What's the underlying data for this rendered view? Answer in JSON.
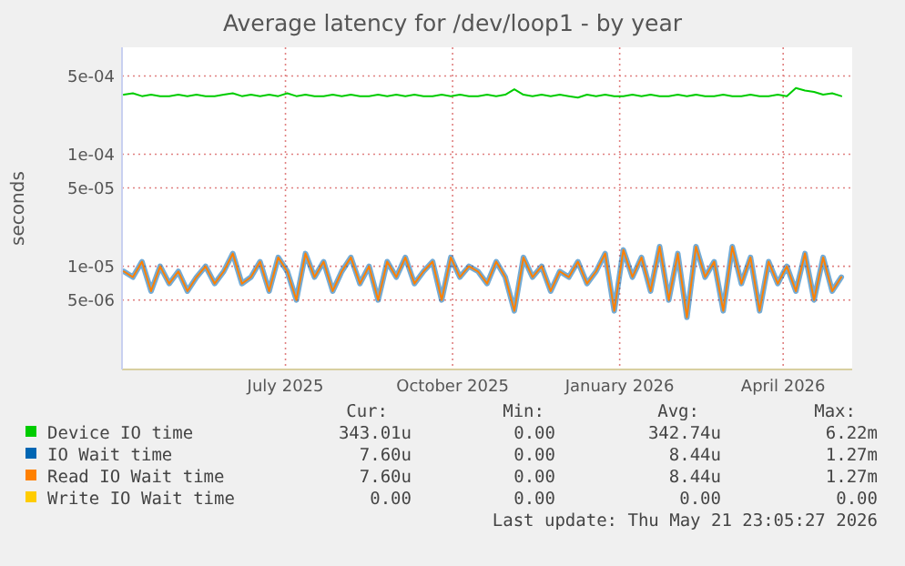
{
  "chart_data": {
    "type": "line",
    "title": "Average latency for /dev/loop1 - by year",
    "ylabel": "seconds",
    "log": "y",
    "grid": true,
    "legend": "bottom",
    "line_style": "solid",
    "x": [
      "2025-04-03",
      "2025-04-08",
      "2025-04-13",
      "2025-04-18",
      "2025-04-23",
      "2025-04-28",
      "2025-05-03",
      "2025-05-08",
      "2025-05-13",
      "2025-05-18",
      "2025-05-23",
      "2025-05-28",
      "2025-06-02",
      "2025-06-07",
      "2025-06-12",
      "2025-06-17",
      "2025-06-22",
      "2025-06-27",
      "2025-07-02",
      "2025-07-07",
      "2025-07-12",
      "2025-07-17",
      "2025-07-22",
      "2025-07-27",
      "2025-08-01",
      "2025-08-06",
      "2025-08-11",
      "2025-08-16",
      "2025-08-21",
      "2025-08-26",
      "2025-08-31",
      "2025-09-05",
      "2025-09-10",
      "2025-09-15",
      "2025-09-20",
      "2025-09-25",
      "2025-09-30",
      "2025-10-05",
      "2025-10-10",
      "2025-10-15",
      "2025-10-20",
      "2025-10-25",
      "2025-10-30",
      "2025-11-04",
      "2025-11-09",
      "2025-11-14",
      "2025-11-19",
      "2025-11-24",
      "2025-11-29",
      "2025-12-04",
      "2025-12-09",
      "2025-12-14",
      "2025-12-19",
      "2025-12-24",
      "2025-12-29",
      "2026-01-03",
      "2026-01-08",
      "2026-01-13",
      "2026-01-18",
      "2026-01-23",
      "2026-01-28",
      "2026-02-02",
      "2026-02-07",
      "2026-02-12",
      "2026-02-17",
      "2026-02-22",
      "2026-02-27",
      "2026-03-04",
      "2026-03-09",
      "2026-03-14",
      "2026-03-19",
      "2026-03-24",
      "2026-03-29",
      "2026-04-03",
      "2026-04-08",
      "2026-04-13",
      "2026-04-18",
      "2026-04-23",
      "2026-04-28",
      "2026-05-03"
    ],
    "xlim": [
      "2025-04-02",
      "2026-05-09"
    ],
    "xticks": [
      {
        "value": "2025-07-01",
        "label": "July 2025"
      },
      {
        "value": "2025-10-01",
        "label": "October 2025"
      },
      {
        "value": "2026-01-01",
        "label": "January 2026"
      },
      {
        "value": "2026-04-01",
        "label": "April 2026"
      }
    ],
    "ylim": [
      1.2e-06,
      0.0009
    ],
    "yticks": [
      {
        "value": 5e-06,
        "label": "5e-06"
      },
      {
        "value": 1e-05,
        "label": "1e-05"
      },
      {
        "value": 5e-05,
        "label": "5e-05"
      },
      {
        "value": 0.0001,
        "label": "1e-04"
      },
      {
        "value": 0.0005,
        "label": "5e-04"
      }
    ],
    "series": [
      {
        "name": "Device IO time",
        "color": "#00cc00",
        "values": [
          0.00034,
          0.00035,
          0.00033,
          0.00034,
          0.00033,
          0.00033,
          0.00034,
          0.00033,
          0.00034,
          0.00033,
          0.00033,
          0.00034,
          0.00035,
          0.00033,
          0.00034,
          0.00033,
          0.00034,
          0.00033,
          0.00035,
          0.00033,
          0.00034,
          0.00033,
          0.00033,
          0.00034,
          0.00033,
          0.00034,
          0.00033,
          0.00033,
          0.00034,
          0.00033,
          0.00034,
          0.00033,
          0.00034,
          0.00033,
          0.00033,
          0.00034,
          0.00033,
          0.00034,
          0.00033,
          0.00033,
          0.00034,
          0.00033,
          0.00034,
          0.00038,
          0.00034,
          0.00033,
          0.00034,
          0.00033,
          0.00034,
          0.00033,
          0.00032,
          0.00034,
          0.00033,
          0.00034,
          0.00033,
          0.00033,
          0.00034,
          0.00033,
          0.00034,
          0.00033,
          0.00033,
          0.00034,
          0.00033,
          0.00034,
          0.00033,
          0.00033,
          0.00034,
          0.00033,
          0.00033,
          0.00034,
          0.00033,
          0.00033,
          0.00034,
          0.00033,
          0.00039,
          0.00037,
          0.00036,
          0.00034,
          0.00035,
          0.00033
        ]
      },
      {
        "name": "IO Wait time",
        "color": "#0066b3",
        "values": [
          9e-06,
          8e-06,
          1.1e-05,
          6e-06,
          1e-05,
          7e-06,
          9e-06,
          6e-06,
          8e-06,
          1e-05,
          7e-06,
          9e-06,
          1.3e-05,
          7e-06,
          8e-06,
          1.1e-05,
          6e-06,
          1.2e-05,
          9e-06,
          5e-06,
          1.3e-05,
          8e-06,
          1.1e-05,
          6e-06,
          9e-06,
          1.2e-05,
          7e-06,
          1e-05,
          5e-06,
          1.1e-05,
          8e-06,
          1.2e-05,
          7e-06,
          9e-06,
          1.1e-05,
          5e-06,
          1.2e-05,
          8e-06,
          1e-05,
          9e-06,
          7e-06,
          1.1e-05,
          8e-06,
          4e-06,
          1.2e-05,
          8e-06,
          1e-05,
          6e-06,
          9e-06,
          8e-06,
          1.1e-05,
          7e-06,
          9e-06,
          1.3e-05,
          4e-06,
          1.4e-05,
          8e-06,
          1.2e-05,
          6e-06,
          1.5e-05,
          5e-06,
          1.3e-05,
          3.5e-06,
          1.5e-05,
          8e-06,
          1.1e-05,
          4e-06,
          1.5e-05,
          7e-06,
          1.2e-05,
          4e-06,
          1.1e-05,
          7e-06,
          1e-05,
          6e-06,
          1.3e-05,
          5e-06,
          1.2e-05,
          6e-06,
          8e-06
        ]
      },
      {
        "name": "Read IO Wait time",
        "color": "#ff8000",
        "values": [
          9e-06,
          8e-06,
          1.1e-05,
          6e-06,
          1e-05,
          7e-06,
          9e-06,
          6e-06,
          8e-06,
          1e-05,
          7e-06,
          9e-06,
          1.3e-05,
          7e-06,
          8e-06,
          1.1e-05,
          6e-06,
          1.2e-05,
          9e-06,
          5e-06,
          1.3e-05,
          8e-06,
          1.1e-05,
          6e-06,
          9e-06,
          1.2e-05,
          7e-06,
          1e-05,
          5e-06,
          1.1e-05,
          8e-06,
          1.2e-05,
          7e-06,
          9e-06,
          1.1e-05,
          5e-06,
          1.2e-05,
          8e-06,
          1e-05,
          9e-06,
          7e-06,
          1.1e-05,
          8e-06,
          4e-06,
          1.2e-05,
          8e-06,
          1e-05,
          6e-06,
          9e-06,
          8e-06,
          1.1e-05,
          7e-06,
          9e-06,
          1.3e-05,
          4e-06,
          1.4e-05,
          8e-06,
          1.2e-05,
          6e-06,
          1.5e-05,
          5e-06,
          1.3e-05,
          3.5e-06,
          1.5e-05,
          8e-06,
          1.1e-05,
          4e-06,
          1.5e-05,
          7e-06,
          1.2e-05,
          4e-06,
          1.1e-05,
          7e-06,
          1e-05,
          6e-06,
          1.3e-05,
          5e-06,
          1.2e-05,
          6e-06,
          8e-06
        ]
      },
      {
        "name": "Write IO Wait time",
        "color": "#ffcc00",
        "values": [
          null,
          null,
          null,
          null,
          null,
          null,
          null,
          null,
          null,
          null,
          null,
          null,
          null,
          null,
          null,
          null,
          null,
          null,
          null,
          null,
          null,
          null,
          null,
          null,
          null,
          null,
          null,
          null,
          null,
          null,
          null,
          null,
          null,
          null,
          null,
          null,
          null,
          null,
          null,
          null,
          null,
          null,
          null,
          null,
          null,
          null,
          null,
          null,
          null,
          null,
          null,
          null,
          null,
          null,
          null,
          null,
          null,
          null,
          null,
          null,
          null,
          null,
          null,
          null,
          null,
          null,
          null,
          null,
          null,
          null,
          null,
          null,
          null,
          null,
          null,
          null,
          null,
          null,
          null,
          null
        ]
      }
    ],
    "annotations": [
      "Cur:",
      "Min:",
      "Avg:",
      "Max:",
      "343.01u",
      "0.00",
      "342.74u",
      "6.22m",
      "7.60u",
      "0.00",
      "8.44u",
      "1.27m",
      "7.60u",
      "0.00",
      "8.44u",
      "1.27m",
      "0.00",
      "0.00",
      "0.00",
      "0.00",
      "Last update: Thu May 21 23:05:27 2026"
    ]
  }
}
